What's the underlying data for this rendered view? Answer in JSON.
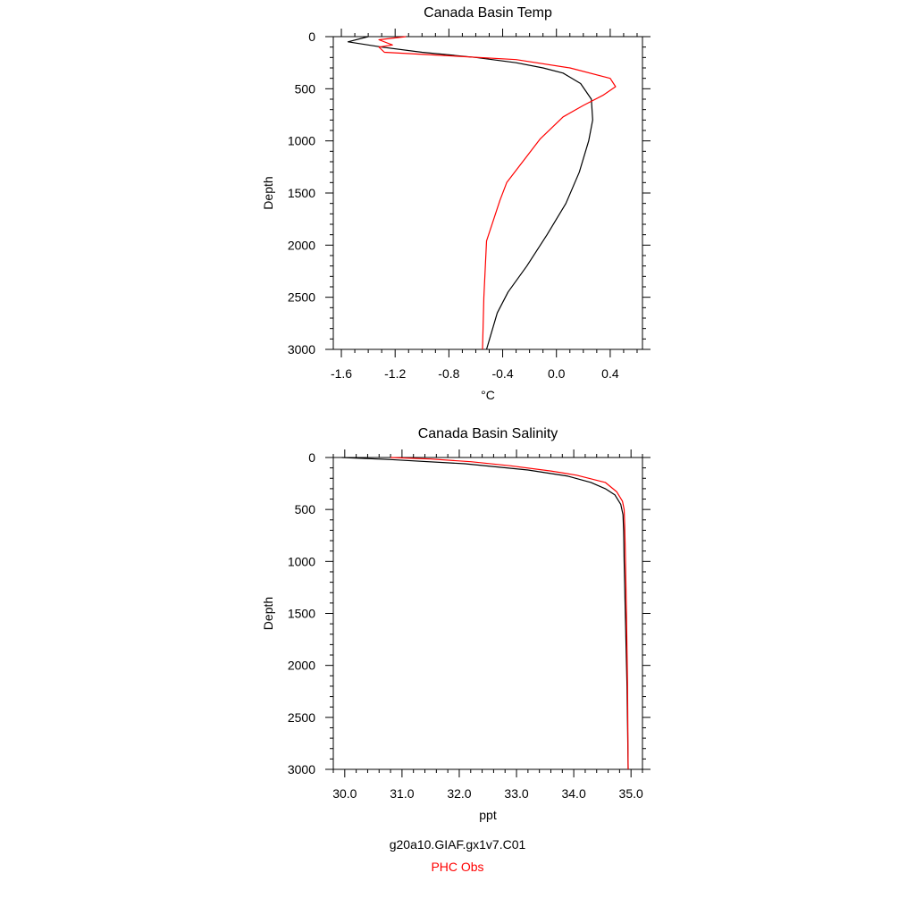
{
  "chart_data": [
    {
      "type": "line",
      "title": "Canada Basin Temp",
      "xlabel": "°C",
      "ylabel": "Depth",
      "xlim": [
        -1.66,
        0.64
      ],
      "ylim": [
        3000,
        0
      ],
      "xticks": [
        -1.6,
        -1.2,
        -0.8,
        -0.4,
        0.0,
        0.4
      ],
      "xtick_labels": [
        "-1.6",
        "-1.2",
        "-0.8",
        "-0.4",
        "0.0",
        "0.4"
      ],
      "xminor_step": 0.1,
      "yticks": [
        0,
        500,
        1000,
        1500,
        2000,
        2500,
        3000
      ],
      "ytick_labels": [
        "0",
        "500",
        "1000",
        "1500",
        "2000",
        "2500",
        "3000"
      ],
      "yminor_step": 100,
      "grid": false,
      "series": [
        {
          "color": "#000000",
          "x": [
            -1.4,
            -1.55,
            -1.3,
            -1.0,
            -0.6,
            -0.3,
            -0.1,
            0.05,
            0.18,
            0.26,
            0.27,
            0.24,
            0.17,
            0.07,
            -0.07,
            -0.22,
            -0.36,
            -0.44,
            -0.52
          ],
          "y": [
            0,
            50,
            100,
            150,
            200,
            250,
            300,
            350,
            450,
            600,
            800,
            1000,
            1300,
            1600,
            1900,
            2200,
            2450,
            2650,
            3000
          ]
        },
        {
          "color": "#ff0000",
          "x": [
            -1.12,
            -1.32,
            -1.22,
            -1.32,
            -1.28,
            -0.85,
            -0.3,
            0.1,
            0.4,
            0.44,
            0.35,
            0.2,
            0.05,
            -0.12,
            -0.37,
            -0.42,
            -0.52,
            -0.54,
            -0.55
          ],
          "y": [
            0,
            30,
            80,
            100,
            150,
            180,
            220,
            300,
            400,
            480,
            560,
            660,
            770,
            980,
            1400,
            1570,
            1960,
            2500,
            3000
          ]
        }
      ]
    },
    {
      "type": "line",
      "title": "Canada Basin Salinity",
      "xlabel": "ppt",
      "ylabel": "Depth",
      "xlim": [
        29.8,
        35.2
      ],
      "ylim": [
        3000,
        0
      ],
      "xticks": [
        30,
        31,
        32,
        33,
        34,
        35
      ],
      "xtick_labels": [
        "30.0",
        "31.0",
        "32.0",
        "33.0",
        "34.0",
        "35.0"
      ],
      "xminor_step": 0.2,
      "yticks": [
        0,
        500,
        1000,
        1500,
        2000,
        2500,
        3000
      ],
      "ytick_labels": [
        "0",
        "500",
        "1000",
        "1500",
        "2000",
        "2500",
        "3000"
      ],
      "yminor_step": 100,
      "grid": false,
      "series": [
        {
          "color": "#000000",
          "x": [
            29.95,
            30.8,
            32.1,
            33.2,
            33.9,
            34.3,
            34.55,
            34.72,
            34.82,
            34.86,
            34.87,
            34.88,
            34.9,
            34.93,
            34.95
          ],
          "y": [
            0,
            20,
            60,
            120,
            180,
            240,
            300,
            360,
            450,
            550,
            700,
            1000,
            1500,
            2200,
            3000
          ]
        },
        {
          "color": "#ff0000",
          "x": [
            30.8,
            31.5,
            32.2,
            32.9,
            33.6,
            34.05,
            34.55,
            34.75,
            34.85,
            34.88,
            34.89,
            34.9,
            34.92,
            34.94,
            34.95
          ],
          "y": [
            0,
            15,
            40,
            80,
            130,
            170,
            240,
            330,
            420,
            500,
            650,
            900,
            1500,
            2200,
            3000
          ]
        }
      ]
    }
  ],
  "legend": [
    {
      "label": "g20a10.GIAF.gx1v7.C01",
      "color": "#000000"
    },
    {
      "label": "PHC Obs",
      "color": "#ff0000"
    }
  ]
}
